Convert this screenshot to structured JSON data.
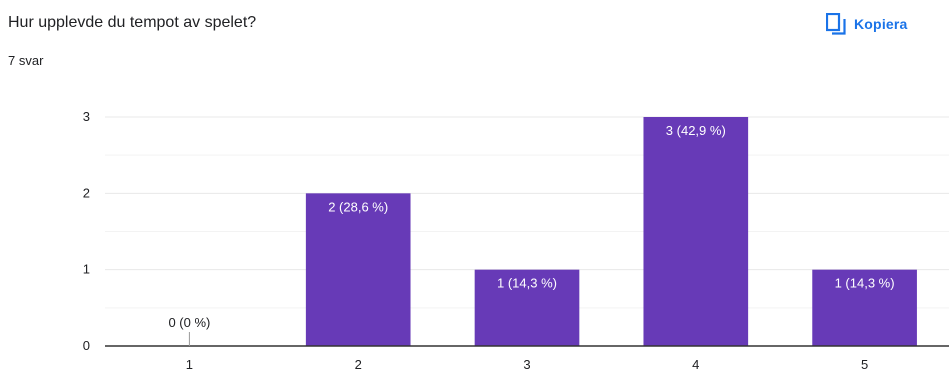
{
  "header": {
    "question": "Hur upplevde du tempot av spelet?",
    "response_count": "7 svar",
    "copy_label": "Kopiera",
    "copy_icon": "copy-icon"
  },
  "colors": {
    "bar": "#673ab7",
    "accent": "#1a73e8",
    "grid": "#e8e8e8",
    "axis": "#333333"
  },
  "chart_data": {
    "type": "bar",
    "title": "Hur upplevde du tempot av spelet?",
    "categories": [
      "1",
      "2",
      "3",
      "4",
      "5"
    ],
    "values": [
      0,
      2,
      1,
      3,
      1
    ],
    "data_labels": [
      "0 (0 %)",
      "2 (28,6 %)",
      "1 (14,3 %)",
      "3 (42,9 %)",
      "1 (14,3 %)"
    ],
    "y_ticks": [
      "0",
      "1",
      "2",
      "3"
    ],
    "ylim": [
      0,
      3
    ],
    "grid": true,
    "xlabel": "",
    "ylabel": ""
  }
}
